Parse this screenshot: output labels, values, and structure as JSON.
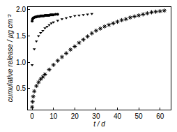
{
  "chart_data": {
    "type": "scatter",
    "x_label": "t / d",
    "y_label": "cumulative release / µg cm⁻²",
    "xlim": [
      -2,
      65
    ],
    "ylim": [
      0.1,
      2.05
    ],
    "xticks": [
      0,
      10,
      20,
      30,
      40,
      50,
      60
    ],
    "yticks": [
      0.5,
      {
        "value": 1.0,
        "label": "1.0"
      },
      1.5,
      {
        "value": 2.0,
        "label": "2.0"
      }
    ],
    "grid": false,
    "series": [
      {
        "color": "#000000",
        "marker": "circle",
        "x": [
          0,
          0.2,
          0.5,
          1,
          1.5,
          2,
          2.5,
          3,
          3.5,
          4,
          4.5,
          5,
          5.5,
          6,
          6.5,
          7,
          7.5,
          8,
          8.5,
          9,
          9.5,
          10,
          11,
          12
        ],
        "values": [
          1.78,
          1.82,
          1.84,
          1.85,
          1.86,
          1.86,
          1.87,
          1.87,
          1.87,
          1.88,
          1.88,
          1.88,
          1.88,
          1.89,
          1.89,
          1.89,
          1.89,
          1.89,
          1.9,
          1.9,
          1.9,
          1.9,
          1.91,
          1.91
        ]
      },
      {
        "color": "#000000",
        "marker": "triangle-down",
        "x": [
          0,
          1,
          2,
          3,
          4,
          5,
          6,
          7,
          8,
          9,
          10,
          12,
          14,
          16,
          18,
          20,
          22,
          24,
          26,
          28
        ],
        "values": [
          0.95,
          1.25,
          1.4,
          1.5,
          1.56,
          1.6,
          1.65,
          1.68,
          1.71,
          1.74,
          1.76,
          1.79,
          1.82,
          1.84,
          1.86,
          1.88,
          1.89,
          1.9,
          1.91,
          1.92
        ]
      },
      {
        "color": "#000000",
        "marker": "asterisk",
        "x": [
          0,
          0.2,
          0.5,
          1,
          2,
          3,
          4,
          5,
          6,
          8,
          10,
          12,
          14,
          16,
          18,
          20,
          22,
          24,
          26,
          28,
          30,
          32,
          34,
          36,
          38,
          40,
          42,
          44,
          46,
          48,
          50,
          52,
          54,
          56,
          58,
          60,
          62
        ],
        "values": [
          0.15,
          0.25,
          0.35,
          0.45,
          0.55,
          0.62,
          0.68,
          0.72,
          0.77,
          0.86,
          0.95,
          1.03,
          1.1,
          1.17,
          1.24,
          1.3,
          1.37,
          1.43,
          1.49,
          1.55,
          1.6,
          1.64,
          1.68,
          1.71,
          1.74,
          1.77,
          1.8,
          1.82,
          1.85,
          1.87,
          1.89,
          1.91,
          1.93,
          1.95,
          1.96,
          1.97,
          1.98
        ]
      }
    ]
  }
}
